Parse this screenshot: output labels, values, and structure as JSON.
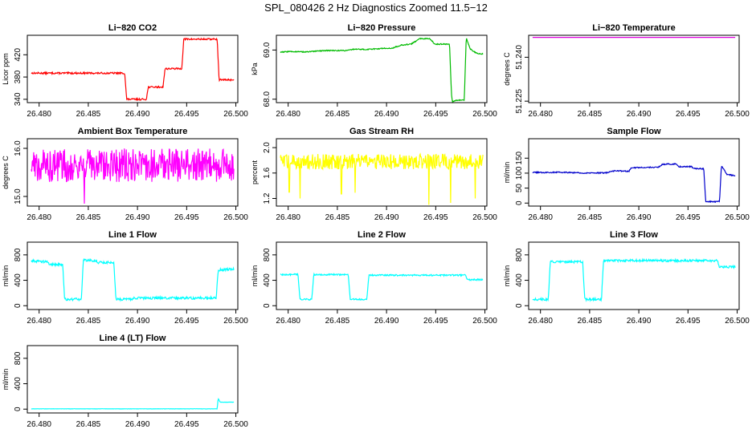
{
  "figure": {
    "title": "SPL_080426  2 Hz Diagnostics Zoomed 11.5−12"
  },
  "chart_data": [
    {
      "type": "line",
      "title": "Li−820 CO2",
      "ylabel": "Licor ppm",
      "color": "#ff0000",
      "xlim": [
        26.4788,
        26.5002
      ],
      "ylim": [
        334,
        455
      ],
      "xticks": [
        26.48,
        26.485,
        26.49,
        26.495,
        26.5
      ],
      "xtick_labels": [
        "26.480",
        "26.485",
        "26.490",
        "26.495",
        "26.500"
      ],
      "yticks": [
        340,
        380,
        420
      ],
      "ytick_labels": [
        "340",
        "380",
        "420"
      ],
      "x": [
        26.4792,
        26.4887,
        26.4889,
        26.4909,
        26.4911,
        26.4926,
        26.4928,
        26.4945,
        26.4947,
        26.4981,
        26.4983,
        26.4998
      ],
      "y": [
        387,
        387,
        340,
        340,
        362,
        362,
        395,
        395,
        448,
        448,
        375,
        375
      ],
      "noise": 1.5
    },
    {
      "type": "line",
      "title": "Li−820 Pressure",
      "ylabel": "kPa",
      "color": "#00bb00",
      "xlim": [
        26.4788,
        26.5002
      ],
      "ylim": [
        67.93,
        69.3
      ],
      "xticks": [
        26.48,
        26.485,
        26.49,
        26.495,
        26.5
      ],
      "xtick_labels": [
        "26.480",
        "26.485",
        "26.490",
        "26.495",
        "26.500"
      ],
      "yticks": [
        68.0,
        69.0
      ],
      "ytick_labels": [
        "68.0",
        "69.0"
      ],
      "x": [
        26.4792,
        26.4805,
        26.4818,
        26.4838,
        26.4858,
        26.4868,
        26.4878,
        26.4894,
        26.4906,
        26.4915,
        26.4925,
        26.4934,
        26.4944,
        26.4949,
        26.4964,
        26.4966,
        26.4967,
        26.4971,
        26.4979,
        26.4981,
        26.4985,
        26.4992,
        26.4998
      ],
      "y": [
        68.96,
        68.97,
        68.96,
        68.99,
        68.99,
        69.02,
        69.01,
        69.03,
        69.04,
        69.1,
        69.12,
        69.23,
        69.23,
        69.12,
        69.12,
        68.1,
        67.95,
        67.98,
        67.98,
        69.25,
        69.02,
        68.93,
        68.92
      ],
      "noise": 0.01
    },
    {
      "type": "line",
      "title": "Li−820 Temperature",
      "ylabel": "degrees C",
      "color": "#dd00dd",
      "xlim": [
        26.4788,
        26.5002
      ],
      "ylim": [
        51.2245,
        51.2475
      ],
      "xticks": [
        26.48,
        26.485,
        26.49,
        26.495,
        26.5
      ],
      "xtick_labels": [
        "26.480",
        "26.485",
        "26.490",
        "26.495",
        "26.500"
      ],
      "yticks": [
        51.225,
        51.24
      ],
      "ytick_labels": [
        "51.225",
        "51.240"
      ],
      "x": [
        26.4792,
        26.4826,
        26.4826,
        26.4826,
        26.497,
        26.497,
        26.497,
        26.4998
      ],
      "y": [
        51.2468,
        51.2468,
        51.2245,
        51.2468,
        51.2468,
        51.2245,
        51.2468,
        51.2468
      ],
      "noise": 0
    },
    {
      "type": "line",
      "title": "Ambient Box Temperature",
      "ylabel": "degrees C",
      "color": "#ff00ff",
      "xlim": [
        26.4788,
        26.5002
      ],
      "ylim": [
        14.8,
        16.2
      ],
      "xticks": [
        26.48,
        26.485,
        26.49,
        26.495,
        26.5
      ],
      "xtick_labels": [
        "26.480",
        "26.485",
        "26.490",
        "26.495",
        "26.500"
      ],
      "yticks": [
        15.0,
        16.0
      ],
      "ytick_labels": [
        "15.0",
        "16.0"
      ],
      "x": [
        26.4792,
        26.4998
      ],
      "y": [
        15.65,
        15.65
      ],
      "noise": 0.35,
      "spikes": [
        {
          "x": 26.4846,
          "y": 14.85
        }
      ]
    },
    {
      "type": "line",
      "title": "Gas Stream RH",
      "ylabel": "percent",
      "color": "#ffff00",
      "xlim": [
        26.4788,
        26.5002
      ],
      "ylim": [
        1.08,
        2.14
      ],
      "xticks": [
        26.48,
        26.485,
        26.49,
        26.495,
        26.5
      ],
      "xtick_labels": [
        "26.480",
        "26.485",
        "26.490",
        "26.495",
        "26.500"
      ],
      "yticks": [
        1.2,
        1.6,
        2.0
      ],
      "ytick_labels": [
        "1.2",
        "1.6",
        "2.0"
      ],
      "x": [
        26.4792,
        26.4998
      ],
      "y": [
        1.78,
        1.78
      ],
      "noise": 0.12,
      "spikes": [
        {
          "x": 26.4801,
          "y": 1.3
        },
        {
          "x": 26.4812,
          "y": 1.2
        },
        {
          "x": 26.4854,
          "y": 1.27
        },
        {
          "x": 26.4868,
          "y": 1.29
        },
        {
          "x": 26.4943,
          "y": 1.1
        },
        {
          "x": 26.4965,
          "y": 1.13
        },
        {
          "x": 26.499,
          "y": 1.2
        }
      ]
    },
    {
      "type": "line",
      "title": "Sample Flow",
      "ylabel": "ml/min",
      "color": "#0000cc",
      "xlim": [
        26.4788,
        26.5002
      ],
      "ylim": [
        -10,
        215
      ],
      "xticks": [
        26.48,
        26.485,
        26.49,
        26.495,
        26.5
      ],
      "xtick_labels": [
        "26.480",
        "26.485",
        "26.490",
        "26.495",
        "26.500"
      ],
      "yticks": [
        0,
        50,
        100,
        150
      ],
      "ytick_labels": [
        "0",
        "50",
        "100",
        "150"
      ],
      "x": [
        26.4792,
        26.4826,
        26.4846,
        26.4866,
        26.4876,
        26.489,
        26.4892,
        26.492,
        26.4924,
        26.4938,
        26.494,
        26.4953,
        26.4957,
        26.4966,
        26.4968,
        26.4982,
        26.4984,
        26.499,
        26.4998
      ],
      "y": [
        102,
        103,
        100,
        101,
        108,
        106,
        118,
        120,
        130,
        130,
        122,
        122,
        115,
        115,
        5,
        5,
        125,
        95,
        92
      ],
      "noise": 2
    },
    {
      "type": "line",
      "title": "Line 1 Flow",
      "ylabel": "ml/min",
      "color": "#00ffff",
      "xlim": [
        26.4788,
        26.5002
      ],
      "ylim": [
        -60,
        1000
      ],
      "xticks": [
        26.48,
        26.485,
        26.49,
        26.495,
        26.5
      ],
      "xtick_labels": [
        "26.480",
        "26.485",
        "26.490",
        "26.495",
        "26.500"
      ],
      "yticks": [
        0,
        400,
        800
      ],
      "ytick_labels": [
        "0",
        "400",
        "800"
      ],
      "x": [
        26.4792,
        26.4808,
        26.481,
        26.4824,
        26.4826,
        26.4843,
        26.4845,
        26.4858,
        26.486,
        26.4876,
        26.4878,
        26.4894,
        26.4896,
        26.498,
        26.4982,
        26.4998
      ],
      "y": [
        710,
        690,
        650,
        650,
        100,
        100,
        720,
        710,
        680,
        680,
        100,
        100,
        120,
        120,
        560,
        580
      ],
      "noise": 20
    },
    {
      "type": "line",
      "title": "Line 2 Flow",
      "ylabel": "ml/min",
      "color": "#00ffff",
      "xlim": [
        26.4788,
        26.5002
      ],
      "ylim": [
        -60,
        1000
      ],
      "xticks": [
        26.48,
        26.485,
        26.49,
        26.495,
        26.5
      ],
      "xtick_labels": [
        "26.480",
        "26.485",
        "26.490",
        "26.495",
        "26.500"
      ],
      "yticks": [
        0,
        400,
        800
      ],
      "ytick_labels": [
        "0",
        "400",
        "800"
      ],
      "x": [
        26.4792,
        26.481,
        26.4812,
        26.4824,
        26.4826,
        26.4861,
        26.4863,
        26.488,
        26.4882,
        26.498,
        26.4982,
        26.4998
      ],
      "y": [
        490,
        490,
        100,
        100,
        490,
        490,
        100,
        100,
        480,
        480,
        410,
        410
      ],
      "noise": 12
    },
    {
      "type": "line",
      "title": "Line 3 Flow",
      "ylabel": "ml/min",
      "color": "#00ffff",
      "xlim": [
        26.4788,
        26.5002
      ],
      "ylim": [
        -60,
        1000
      ],
      "xticks": [
        26.48,
        26.485,
        26.49,
        26.495,
        26.5
      ],
      "xtick_labels": [
        "26.480",
        "26.485",
        "26.490",
        "26.495",
        "26.500"
      ],
      "yticks": [
        0,
        400,
        800
      ],
      "ytick_labels": [
        "0",
        "400",
        "800"
      ],
      "x": [
        26.4792,
        26.4808,
        26.481,
        26.4843,
        26.4845,
        26.4862,
        26.4864,
        26.498,
        26.4982,
        26.4998
      ],
      "y": [
        100,
        100,
        690,
        690,
        100,
        100,
        710,
        710,
        610,
        610
      ],
      "noise": 18
    },
    {
      "type": "line",
      "title": "Line 4 (LT) Flow",
      "ylabel": "ml/min",
      "color": "#00ffff",
      "xlim": [
        26.4788,
        26.5002
      ],
      "ylim": [
        -60,
        1000
      ],
      "xticks": [
        26.48,
        26.485,
        26.49,
        26.495,
        26.5
      ],
      "xtick_labels": [
        "26.480",
        "26.485",
        "26.490",
        "26.495",
        "26.500"
      ],
      "yticks": [
        0,
        400,
        800
      ],
      "ytick_labels": [
        "0",
        "400",
        "800"
      ],
      "x": [
        26.4792,
        26.4981,
        26.4982,
        26.4984,
        26.4998
      ],
      "y": [
        5,
        5,
        170,
        110,
        110
      ],
      "noise": 2
    }
  ]
}
